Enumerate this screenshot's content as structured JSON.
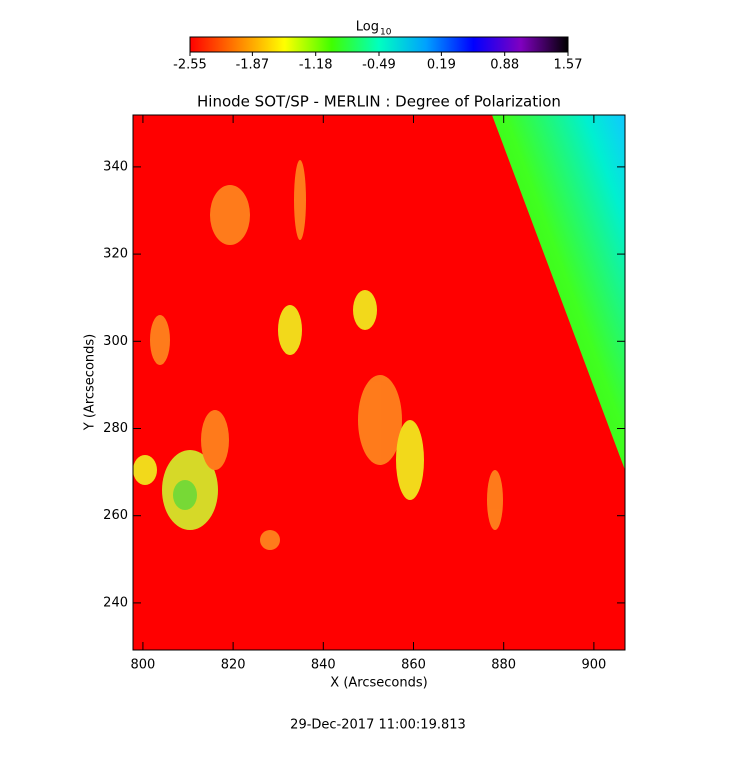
{
  "chart_data": {
    "type": "image",
    "title": "Hinode SOT/SP - MERLIN : Degree of Polarization",
    "xlabel": "X (Arcseconds)",
    "ylabel": "Y (Arcseconds)",
    "xlim": [
      797.8,
      906.9
    ],
    "ylim": [
      229.2,
      351.9
    ],
    "xticks": [
      800,
      820,
      840,
      860,
      880,
      900
    ],
    "yticks": [
      240,
      260,
      280,
      300,
      320,
      340
    ],
    "colorbar": {
      "label": "Log",
      "label_subscript": "10",
      "lim": [
        -2.55,
        1.57
      ],
      "ticks": [
        -2.55,
        -1.87,
        -1.18,
        -0.49,
        0.19,
        0.88,
        1.57
      ],
      "colors": [
        "#ff0000",
        "#ff8000",
        "#ffff00",
        "#40ff00",
        "#00ffc0",
        "#00a0ff",
        "#0000ff",
        "#8000c0",
        "#000000"
      ]
    },
    "footer": "29-Dec-2017 11:00:19.813"
  }
}
